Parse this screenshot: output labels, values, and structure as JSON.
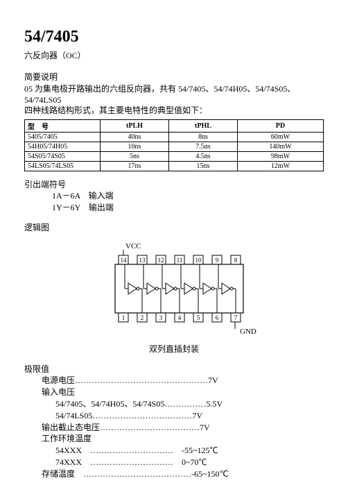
{
  "title": "54/7405",
  "subtitle": "六反向器（OC）",
  "brief_label": "简要说明",
  "brief_text1": "05 为集电极开路输出的六组反向器，共有 54/7405、54/74H05、54/74S05、54/74LS05",
  "brief_text2": "四种线路结构形式，其主要电特性的典型值如下：",
  "table": {
    "headers": [
      "型　号",
      "tPLH",
      "tPHL",
      "PD"
    ],
    "rows": [
      [
        "5405/7405",
        "40ns",
        "8ns",
        "60mW"
      ],
      [
        "54H05/74H05",
        "10ns",
        "7.5ns",
        "140mW"
      ],
      [
        "54S05/74S05",
        "5ns",
        "4.5ns",
        "98mW"
      ],
      [
        "54LS05/74LS05",
        "17ns",
        "15ns",
        "12mW"
      ]
    ]
  },
  "pin_label": "引出端符号",
  "pin1": "1A－6A　输入端",
  "pin2": "1Y－6Y　输出端",
  "logic_label": "逻辑图",
  "diagram": {
    "vcc": "VCC",
    "gnd": "GND",
    "top_pins": [
      "14",
      "13",
      "12",
      "11",
      "10",
      "9",
      "8"
    ],
    "bot_pins": [
      "1",
      "2",
      "3",
      "4",
      "5",
      "6",
      "7"
    ]
  },
  "pkg_caption": "双列直插封装",
  "limits_label": "极限值",
  "limit_rows": [
    {
      "lv": 0,
      "label": "电源电压",
      "dots": "…………………………………………",
      "val": "7V"
    },
    {
      "lv": 0,
      "label": "输入电压",
      "dots": "",
      "val": ""
    },
    {
      "lv": 1,
      "label": "54/7405、54/74H05、54/74S05",
      "dots": "……………",
      "val": "5.5V"
    },
    {
      "lv": 1,
      "label": "54/74LS05",
      "dots": "………………………………",
      "val": "7V"
    },
    {
      "lv": 0,
      "label": "输出截止态电压",
      "dots": "………………………………",
      "val": "7V"
    },
    {
      "lv": 0,
      "label": "工作环境温度",
      "dots": "",
      "val": ""
    },
    {
      "lv": 1,
      "label": "54XXX　",
      "dots": "…………………………",
      "val": "　-55~125℃"
    },
    {
      "lv": 1,
      "label": "74XXX　",
      "dots": "…………………………",
      "val": "　0~70℃"
    },
    {
      "lv": 0,
      "label": "存储温度　",
      "dots": "…………………………………",
      "val": "-65~150℃"
    }
  ]
}
